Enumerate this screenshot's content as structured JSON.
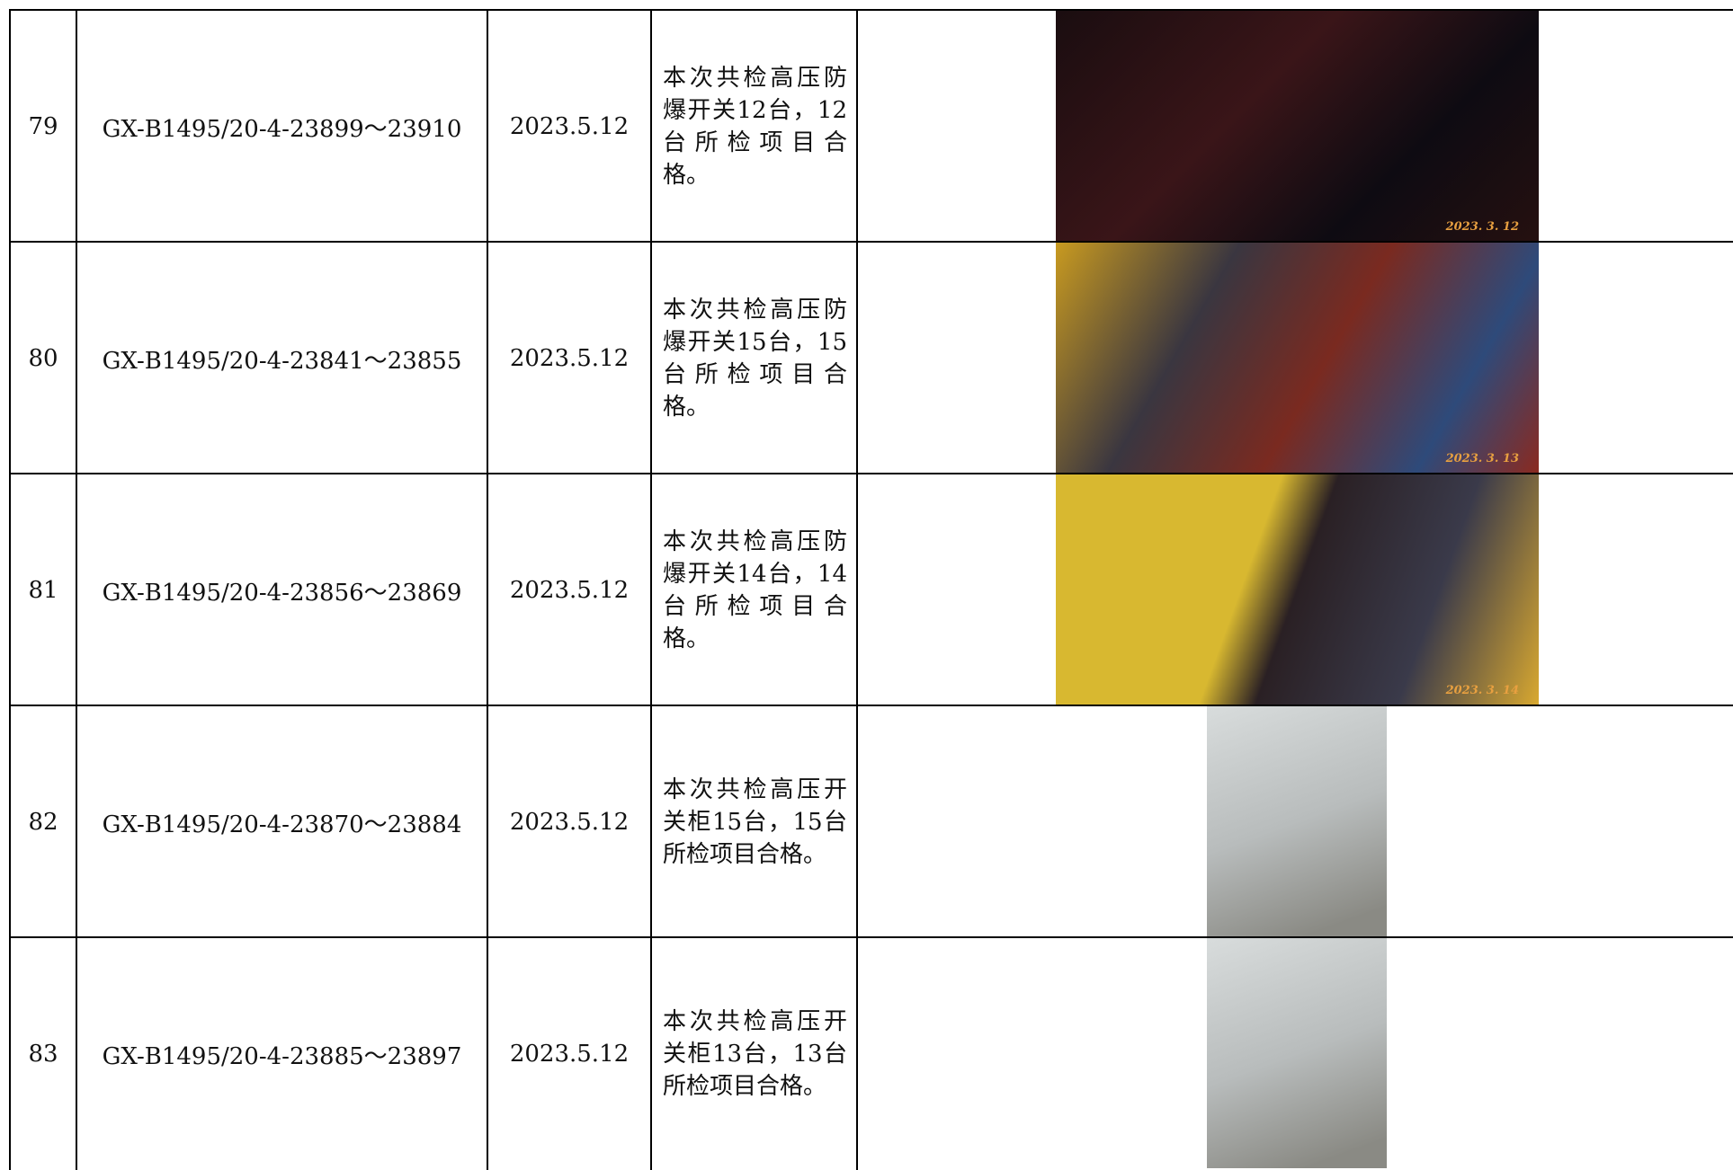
{
  "table": {
    "rows": [
      {
        "no": "79",
        "code": "GX-B1495/20-4-23899～23910",
        "date": "2023.5.12",
        "desc": "本次共检高压防爆开关12台，12台所检项目合格。",
        "photo_stamp": "2023. 3. 12"
      },
      {
        "no": "80",
        "code": "GX-B1495/20-4-23841～23855",
        "date": "2023.5.12",
        "desc": "本次共检高压防爆开关15台，15台所检项目合格。",
        "photo_stamp": "2023. 3. 13"
      },
      {
        "no": "81",
        "code": "GX-B1495/20-4-23856～23869",
        "date": "2023.5.12",
        "desc": "本次共检高压防爆开关14台，14台所检项目合格。",
        "photo_stamp": "2023. 3. 14"
      },
      {
        "no": "82",
        "code": "GX-B1495/20-4-23870～23884",
        "date": "2023.5.12",
        "desc": "本次共检高压开关柜15台，15台所检项目合格。"
      },
      {
        "no": "83",
        "code": "GX-B1495/20-4-23885～23897",
        "date": "2023.5.12",
        "desc": "本次共检高压开关柜13台，13台所检项目合格。"
      }
    ]
  }
}
